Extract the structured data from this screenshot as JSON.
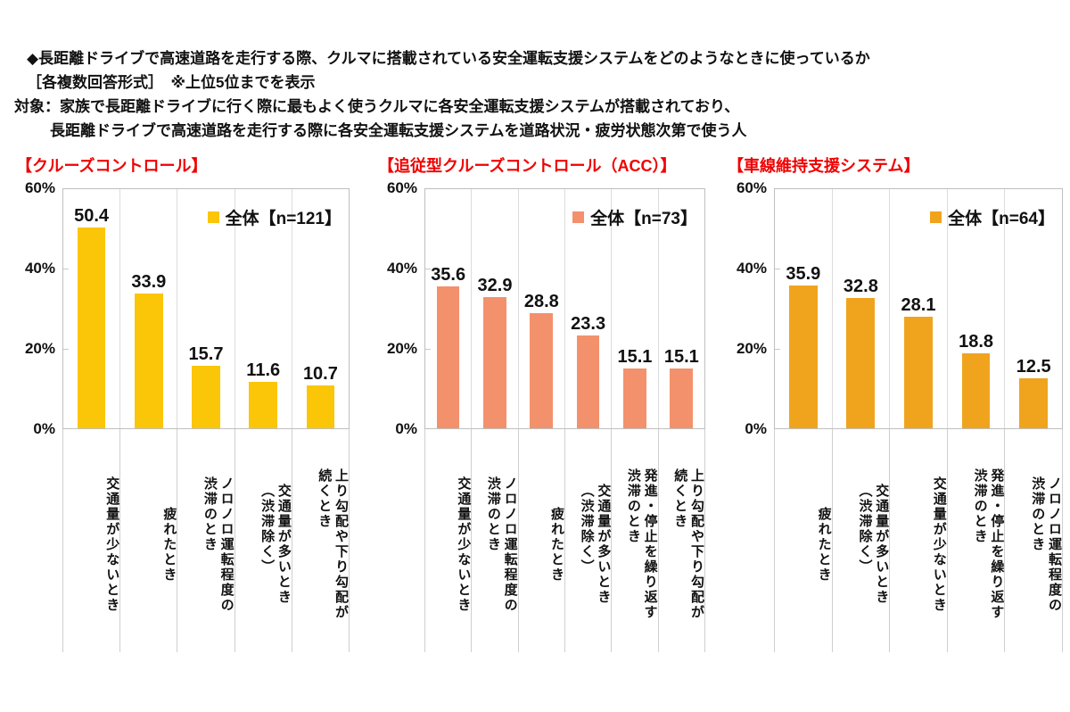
{
  "header": {
    "line1": "◆長距離ドライブで高速道路を走行する際、クルマに搭載されている安全運転支援システムをどのようなときに使っているか",
    "line2": "［各複数回答形式］　※上位5位までを表示",
    "line3": "対象：家族で長距離ドライブに行く際に最もよく使うクルマに各安全運転支援システムが搭載されており、",
    "line4": "長距離ドライブで高速道路を走行する際に各安全運転支援システムを道路状況・疲労状態次第で使う人"
  },
  "colors": {
    "title_red": "#f00000",
    "cruise_yellow": "#fbc508",
    "acc_salmon": "#f3916c",
    "lane_amber": "#f0a41e"
  },
  "chart_data": [
    {
      "type": "bar",
      "title": "【クルーズコントロール】",
      "legend": "全体【n=121】",
      "bar_color": "#fbc508",
      "categories": [
        "交通量が少ないとき",
        "疲れたとき",
        "ノロノロ運転程度の渋滞のとき",
        "交通量が多いとき（渋滞除く）",
        "上り勾配や下り勾配が続くとき"
      ],
      "category_lines": [
        "交通量が少ないとき",
        "疲れたとき",
        "ノロノロ運転程度の\n渋滞のとき",
        "交通量が多いとき\n（渋滞除く）",
        "上り勾配や下り勾配が\n続くとき"
      ],
      "values": [
        50.4,
        33.9,
        15.7,
        11.6,
        10.7
      ],
      "yticks": [
        "60%",
        "40%",
        "20%",
        "0%"
      ],
      "ylim": [
        0,
        60
      ],
      "legend_position": "top-right",
      "grid": "column-separators"
    },
    {
      "type": "bar",
      "title": "【追従型クルーズコントロール（ACC）】",
      "legend": "全体【n=73】",
      "bar_color": "#f3916c",
      "categories": [
        "交通量が少ないとき",
        "ノロノロ運転程度の渋滞のとき",
        "疲れたとき",
        "交通量が多いとき（渋滞除く）",
        "発進・停止を繰り返す渋滞のとき",
        "上り勾配や下り勾配が続くとき"
      ],
      "category_lines": [
        "交通量が少ないとき",
        "ノロノロ運転程度の\n渋滞のとき",
        "疲れたとき",
        "交通量が多いとき\n（渋滞除く）",
        "発進・停止を繰り返す\n渋滞のとき",
        "上り勾配や下り勾配が\n続くとき"
      ],
      "values": [
        35.6,
        32.9,
        28.8,
        23.3,
        15.1,
        15.1
      ],
      "yticks": [
        "60%",
        "40%",
        "20%",
        "0%"
      ],
      "ylim": [
        0,
        60
      ],
      "legend_position": "top-right",
      "grid": "column-separators"
    },
    {
      "type": "bar",
      "title": "【車線維持支援システム】",
      "legend": "全体【n=64】",
      "bar_color": "#f0a41e",
      "categories": [
        "疲れたとき",
        "交通量が多いとき（渋滞除く）",
        "交通量が少ないとき",
        "発進・停止を繰り返す渋滞のとき",
        "ノロノロ運転程度の渋滞のとき"
      ],
      "category_lines": [
        "疲れたとき",
        "交通量が多いとき\n（渋滞除く）",
        "交通量が少ないとき",
        "発進・停止を繰り返す\n渋滞のとき",
        "ノロノロ運転程度の\n渋滞のとき"
      ],
      "values": [
        35.9,
        32.8,
        28.1,
        18.8,
        12.5
      ],
      "yticks": [
        "60%",
        "40%",
        "20%",
        "0%"
      ],
      "ylim": [
        0,
        60
      ],
      "legend_position": "top-right",
      "grid": "column-separators"
    }
  ]
}
